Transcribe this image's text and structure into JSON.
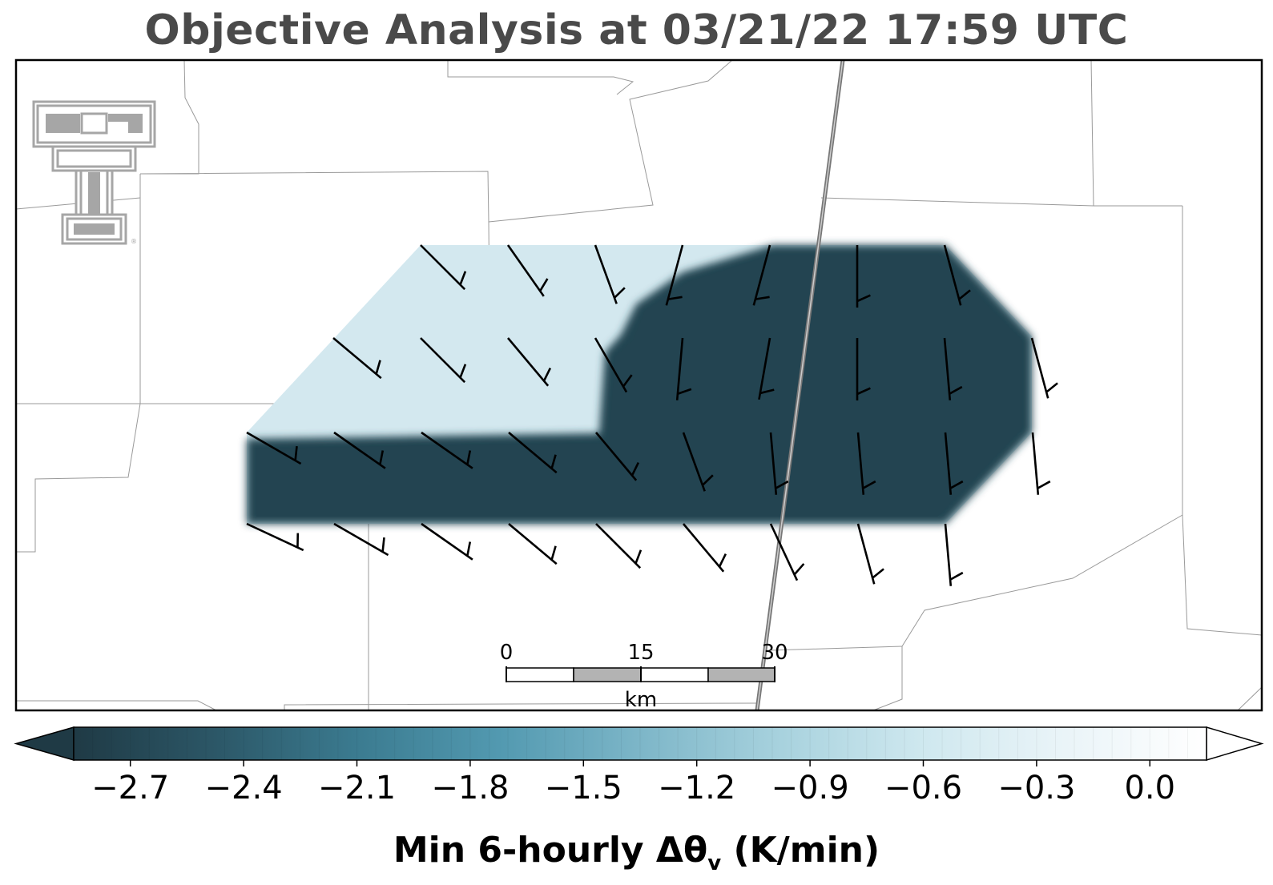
{
  "title": "Objective Analysis at 03/21/22 17:59 UTC",
  "logo": {
    "name": "Texas Tech Double-T",
    "color": "#a6a6a6"
  },
  "field": {
    "low_color": "#234451",
    "high_color": "#d3e8ef"
  },
  "scalebar": {
    "ticks": [
      "0",
      "15",
      "30"
    ],
    "unit": "km"
  },
  "colorbar": {
    "label_main": "Min 6-hourly Δθ",
    "label_sub": "v",
    "label_unit": " (K/min)",
    "ticks": [
      "−2.7",
      "−2.4",
      "−2.1",
      "−1.8",
      "−1.5",
      "−1.2",
      "−0.9",
      "−0.6",
      "−0.3",
      "0.0"
    ],
    "tick_values": [
      -2.7,
      -2.4,
      -2.1,
      -1.8,
      -1.5,
      -1.2,
      -0.9,
      -0.6,
      -0.3,
      0.0
    ],
    "vmin": -2.85,
    "vmax": 0.15,
    "colormap": [
      "#1f3a45",
      "#2c5767",
      "#3b7b90",
      "#5299b0",
      "#7db6c8",
      "#a8d2de",
      "#cfe8ef",
      "#eaf4f8",
      "#ffffff"
    ]
  },
  "wind_barbs": {
    "rows": [
      {
        "row": 1,
        "dirs_deg": [
          315,
          325,
          340,
          15,
          15,
          0,
          345
        ]
      },
      {
        "row": 2,
        "dirs_deg": [
          310,
          315,
          320,
          330,
          5,
          10,
          0,
          355,
          345
        ]
      },
      {
        "row": 3,
        "dirs_deg": [
          300,
          305,
          305,
          310,
          320,
          340,
          355,
          355,
          355,
          355
        ]
      },
      {
        "row": 4,
        "dirs_deg": [
          295,
          300,
          305,
          310,
          315,
          320,
          335,
          345,
          355
        ]
      }
    ]
  }
}
